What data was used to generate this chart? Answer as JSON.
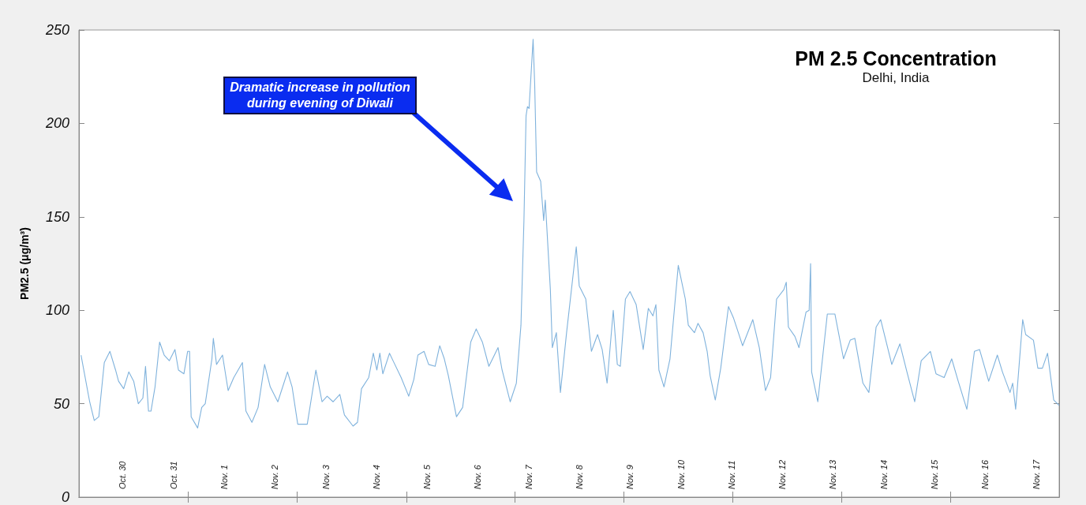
{
  "chart_data": {
    "type": "line",
    "title": "PM 2.5 Concentration",
    "subtitle": "Delhi, India",
    "ylabel": "PM2.5 (μg/m³)",
    "annotations": [
      "Dramatic increase in pollution during evening of Diwali"
    ],
    "xlim": [
      "--10-29T03:20",
      "--11-17T11:00"
    ],
    "xticks": [
      {
        "value": "--10-30",
        "label": "Oct. 30"
      },
      {
        "value": "--10-31",
        "label": "Oct. 31"
      },
      {
        "value": "--11-01",
        "label": "Nov. 1"
      },
      {
        "value": "--11-02",
        "label": "Nov. 2"
      },
      {
        "value": "--11-03",
        "label": "Nov. 3"
      },
      {
        "value": "--11-04",
        "label": "Nov. 4"
      },
      {
        "value": "--11-05",
        "label": "Nov. 5"
      },
      {
        "value": "--11-06",
        "label": "Nov. 6"
      },
      {
        "value": "--11-07",
        "label": "Nov. 7"
      },
      {
        "value": "--11-08",
        "label": "Nov. 8"
      },
      {
        "value": "--11-09",
        "label": "Nov. 9"
      },
      {
        "value": "--11-10",
        "label": "Nov. 10"
      },
      {
        "value": "--11-11",
        "label": "Nov. 11"
      },
      {
        "value": "--11-12",
        "label": "Nov. 12"
      },
      {
        "value": "--11-13",
        "label": "Nov. 13"
      },
      {
        "value": "--11-14",
        "label": "Nov. 14"
      },
      {
        "value": "--11-15",
        "label": "Nov. 15"
      },
      {
        "value": "--11-16",
        "label": "Nov. 16"
      },
      {
        "value": "--11-17",
        "label": "Nov. 17"
      },
      {
        "value": "--10-31T07:00",
        "label": null
      },
      {
        "value": "--11-02T10:35",
        "label": null
      },
      {
        "value": "--11-04T14:25",
        "label": null
      },
      {
        "value": "--11-06T17:30",
        "label": null
      },
      {
        "value": "--11-08T21:10",
        "label": null
      },
      {
        "value": "--11-11T00:30",
        "label": null
      },
      {
        "value": "--11-13T04:05",
        "label": null
      },
      {
        "value": "--11-15T07:25",
        "label": null
      }
    ],
    "ylim": [
      0,
      250
    ],
    "yticks": [
      0,
      50,
      100,
      150,
      200,
      250
    ],
    "grid": false,
    "series": [
      {
        "color": "#7fb2dc",
        "x": [
          "--10-29T04:20",
          "--10-29T08:25",
          "--10-29T10:35",
          "--10-29T12:45",
          "--10-29T15:20",
          "--10-29T18:00",
          "--10-29T20:40",
          "--10-29T22:05",
          "--10-30T00:30",
          "--10-30T02:55",
          "--10-30T05:15",
          "--10-30T07:25",
          "--10-30T09:35",
          "--10-30T10:50",
          "--10-30T12:15",
          "--10-30T13:25",
          "--10-30T15:20",
          "--10-30T17:30",
          "--10-30T19:40",
          "--10-30T22:05",
          "--10-31T00:45",
          "--10-31T02:25",
          "--10-31T05:00",
          "--10-31T06:45",
          "--10-31T07:40",
          "--10-31T08:25",
          "--10-31T11:30",
          "--10-31T13:25",
          "--10-31T15:05",
          "--10-31T18:15",
          "--10-31T18:55",
          "--10-31T20:25",
          "--10-31T23:15",
          "--11-01T01:55",
          "--11-01T04:35",
          "--11-01T08:40",
          "--11-01T10:20",
          "--11-01T13:10",
          "--11-01T16:05",
          "--11-01T19:10",
          "--11-01T21:50",
          "--11-02T01:25",
          "--11-02T06:00",
          "--11-02T08:10",
          "--11-02T10:50",
          "--11-02T15:20",
          "--11-02T19:25",
          "--11-02T22:20",
          "--11-03T00:45",
          "--11-03T03:35",
          "--11-03T06:45",
          "--11-03T08:55",
          "--11-03T13:00",
          "--11-03T15:05",
          "--11-03T17:00",
          "--11-03T20:25",
          "--11-03T22:35",
          "--11-04T00:15",
          "--11-04T01:40",
          "--11-04T03:05",
          "--11-04T06:15",
          "--11-04T07:55",
          "--11-04T11:45",
          "--11-04T15:20",
          "--11-04T17:45",
          "--11-04T19:40",
          "--11-04T22:35",
          "--11-05T00:45",
          "--11-05T03:50",
          "--11-05T06:00",
          "--11-05T08:10",
          "--11-05T10:05",
          "--11-05T13:55",
          "--11-05T16:50",
          "--11-05T20:40",
          "--11-05T23:15",
          "--11-06T02:10",
          "--11-06T05:15",
          "--11-06T09:35",
          "--11-06T11:30",
          "--11-06T15:20",
          "--11-06T18:15",
          "--11-06T20:25",
          "--11-06T21:50",
          "--11-06T22:50",
          "--11-06T23:30",
          "--11-07T00:15",
          "--11-07T02:10",
          "--11-07T02:55",
          "--11-07T03:50",
          "--11-07T05:45",
          "--11-07T07:10",
          "--11-07T07:55",
          "--11-07T10:20",
          "--11-07T11:15",
          "--11-07T13:10",
          "--11-07T15:05",
          "--11-07T18:00",
          "--11-07T22:35",
          "--11-08T00:00",
          "--11-08T03:05",
          "--11-08T05:45",
          "--11-08T08:40",
          "--11-08T10:50",
          "--11-08T13:10",
          "--11-08T16:05",
          "--11-08T18:00",
          "--11-08T19:25",
          "--11-08T21:50",
          "--11-09T00:00",
          "--11-09T02:55",
          "--11-09T06:15",
          "--11-09T08:40",
          "--11-09T10:50",
          "--11-09T12:15",
          "--11-09T13:40",
          "--11-09T16:05",
          "--11-09T18:55",
          "--11-09T22:50",
          "--11-10T02:10",
          "--11-10T03:35",
          "--11-10T06:30",
          "--11-10T08:10",
          "--11-10T10:35",
          "--11-10T12:30",
          "--11-10T13:55",
          "--11-10T16:20",
          "--11-10T18:55",
          "--11-10T22:35",
          "--11-11T00:55",
          "--11-11T03:50",
          "--11-11T05:15",
          "--11-11T10:05",
          "--11-11T13:10",
          "--11-11T16:05",
          "--11-11T18:30",
          "--11-11T21:20",
          "--11-12T00:45",
          "--11-12T01:55",
          "--11-12T02:55",
          "--11-12T06:00",
          "--11-12T07:55",
          "--11-12T11:15",
          "--11-12T12:45",
          "--11-12T13:25",
          "--11-12T13:55",
          "--11-12T16:50",
          "--11-12T21:20",
          "--11-13T00:55",
          "--11-13T05:00",
          "--11-13T08:10",
          "--11-13T10:20",
          "--11-13T14:10",
          "--11-13T17:00",
          "--11-13T20:25",
          "--11-13T22:35",
          "--11-14T03:50",
          "--11-14T07:40",
          "--11-14T11:00",
          "--11-14T14:40",
          "--11-14T17:45",
          "--11-14T22:05",
          "--11-15T00:45",
          "--11-15T04:35",
          "--11-15T08:10",
          "--11-15T11:15",
          "--11-15T15:20",
          "--11-15T18:55",
          "--11-15T21:20",
          "--11-16T01:40",
          "--11-16T05:45",
          "--11-16T08:10",
          "--11-16T11:45",
          "--11-16T13:00",
          "--11-16T14:25",
          "--11-16T17:45",
          "--11-16T19:10",
          "--11-16T22:50",
          "--11-17T00:55",
          "--11-17T03:05",
          "--11-17T05:30",
          "--11-17T08:25",
          "--11-17T11:00"
        ],
        "values": [
          76,
          51,
          41,
          43,
          72,
          78,
          68,
          62,
          58,
          67,
          62,
          50,
          53,
          70,
          46,
          46,
          59,
          83,
          76,
          73,
          79,
          68,
          66,
          78,
          78,
          43,
          37,
          48,
          50,
          74,
          85,
          71,
          76,
          57,
          64,
          72,
          46,
          40,
          48,
          71,
          59,
          51,
          67,
          59,
          39,
          39,
          68,
          51,
          54,
          51,
          55,
          44,
          38,
          40,
          58,
          64,
          77,
          68,
          77,
          66,
          77,
          73,
          64,
          54,
          63,
          76,
          78,
          71,
          70,
          81,
          74,
          65,
          43,
          48,
          83,
          90,
          83,
          70,
          80,
          68,
          51,
          61,
          92,
          148,
          204,
          209,
          208,
          245,
          221,
          174,
          169,
          148,
          159,
          111,
          80,
          88,
          56,
          88,
          134,
          113,
          106,
          78,
          87,
          79,
          61,
          100,
          71,
          70,
          106,
          110,
          103,
          79,
          101,
          97,
          103,
          68,
          59,
          74,
          124,
          106,
          92,
          88,
          93,
          88,
          78,
          65,
          52,
          69,
          102,
          96,
          86,
          81,
          95,
          80,
          57,
          64,
          106,
          111,
          115,
          91,
          86,
          80,
          99,
          100,
          125,
          67,
          51,
          98,
          98,
          74,
          84,
          85,
          61,
          56,
          91,
          95,
          71,
          82,
          67,
          51,
          73,
          78,
          66,
          64,
          74,
          62,
          47,
          78,
          79,
          62,
          76,
          67,
          56,
          61,
          47,
          95,
          87,
          84,
          69,
          69,
          77,
          52,
          49
        ]
      }
    ]
  }
}
